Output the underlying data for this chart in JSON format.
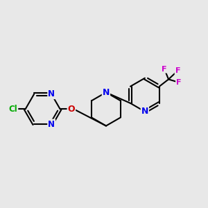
{
  "bg_color": "#e8e8e8",
  "bond_color": "#000000",
  "bond_width": 1.5,
  "N_color": "#0000ee",
  "O_color": "#cc0000",
  "Cl_color": "#00aa00",
  "F_color": "#cc00cc",
  "figsize": [
    3.0,
    3.0
  ],
  "dpi": 100,
  "xlim": [
    -0.5,
    9.5
  ],
  "ylim": [
    -3.0,
    3.5
  ]
}
